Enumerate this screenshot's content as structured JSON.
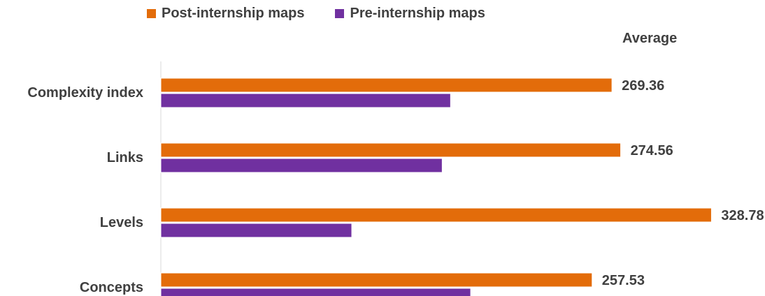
{
  "chart_data": {
    "type": "bar",
    "orientation": "horizontal",
    "categories": [
      "Complexity index",
      "Links",
      "Levels",
      "Concepts"
    ],
    "series": [
      {
        "name": "Post-internship maps",
        "color": "#E36C0A",
        "values": [
          269.36,
          274.56,
          328.78,
          257.53
        ]
      },
      {
        "name": "Pre-internship maps",
        "color": "#7030A0",
        "values": [
          173,
          168,
          114,
          185
        ]
      }
    ],
    "data_labels": [
      "269.36",
      "274.56",
      "328.78",
      "257.53"
    ],
    "annotation": "Average",
    "legend_position": "top",
    "grid": false
  }
}
